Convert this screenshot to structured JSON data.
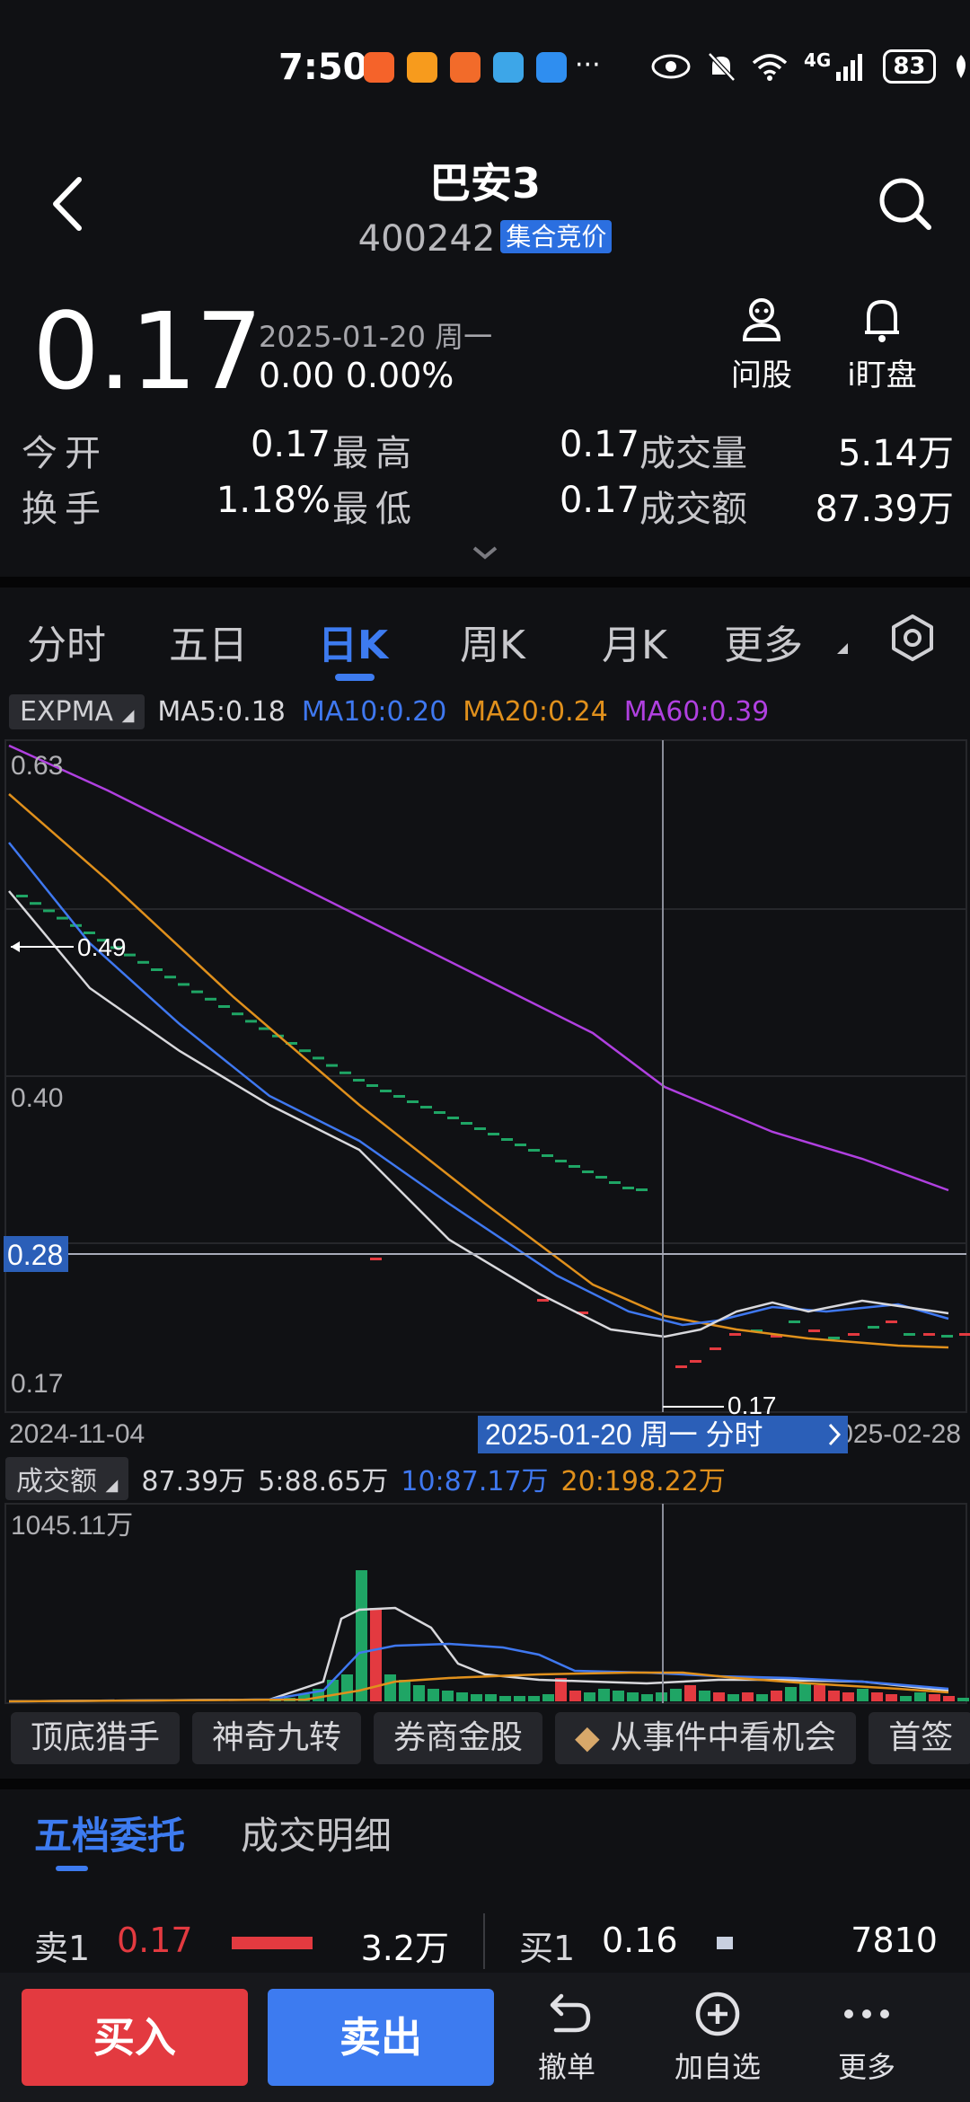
{
  "status_bar": {
    "time": "7:50",
    "dots": "···",
    "network": "4G",
    "battery": "83"
  },
  "header": {
    "title": "巴安3",
    "code": "400242",
    "badge": "集合竞价"
  },
  "quote": {
    "price": "0.17",
    "date": "2025-01-20 周一",
    "change": "0.00 0.00%",
    "tools": [
      {
        "label": "问股",
        "icon": "robot-icon"
      },
      {
        "label": "i盯盘",
        "icon": "bell-icon"
      }
    ],
    "stats": [
      {
        "l1": "今开",
        "v1": "0.17",
        "l2": "最高",
        "v2": "0.17",
        "l3": "成交量",
        "v3": "5.14万"
      },
      {
        "l1": "换手",
        "v1": "1.18%",
        "l2": "最低",
        "v2": "0.17",
        "l3": "成交额",
        "v3": "87.39万"
      }
    ]
  },
  "tabs": [
    "分时",
    "五日",
    "日K",
    "周K",
    "月K",
    "更多"
  ],
  "active_tab": "日K",
  "indicator": {
    "name": "EXPMA",
    "ma5": "MA5:0.18",
    "ma10": "MA10:0.20",
    "ma20": "MA20:0.24",
    "ma60": "MA60:0.39"
  },
  "price_chart": {
    "y_labels": [
      "0.63",
      "0.40",
      "0.28",
      "0.17"
    ],
    "marker_high": "0.49",
    "marker_low": "0.17",
    "date_start": "2024-11-04",
    "date_cursor": "2025-01-20 周一 分时",
    "date_end": "2025-02-28"
  },
  "volume_legend": {
    "name": "成交额",
    "value": "87.39万",
    "ma5": "5:88.65万",
    "ma10": "10:87.17万",
    "ma20": "20:198.22万",
    "max_label": "1045.11万"
  },
  "chips": [
    "顶底猎手",
    "神奇九转",
    "券商金股",
    "从事件中看机会",
    "首签"
  ],
  "orderbook": {
    "tabs": [
      "五档委托",
      "成交明细"
    ],
    "sell1": {
      "label": "卖1",
      "price": "0.17",
      "qty": "3.2万"
    },
    "buy1": {
      "label": "买1",
      "price": "0.16",
      "qty": "7810"
    }
  },
  "bottom": {
    "buy": "买入",
    "sell": "卖出",
    "actions": [
      {
        "label": "撤单",
        "icon": "undo-icon"
      },
      {
        "label": "加自选",
        "icon": "add-favorite-icon"
      },
      {
        "label": "更多",
        "icon": "more-icon"
      }
    ]
  },
  "colors": {
    "up": "#e33a40",
    "down": "#1fa565",
    "accent": "#3d7bf0",
    "ma5": "#d8d8dc",
    "ma10": "#3f78f0",
    "ma20": "#e0901c",
    "ma60": "#b040e0"
  },
  "chart_data": {
    "type": "line",
    "categories": [
      "2024-11-04",
      "2025-01-20",
      "2025-02-28"
    ],
    "series": [
      {
        "name": "MA5",
        "values": [
          0.54,
          0.18,
          0.18
        ]
      },
      {
        "name": "MA10",
        "values": [
          0.56,
          0.2,
          0.18
        ]
      },
      {
        "name": "MA20",
        "values": [
          0.6,
          0.24,
          0.19
        ]
      },
      {
        "name": "MA60",
        "values": [
          0.63,
          0.39,
          0.32
        ]
      }
    ],
    "ylim": [
      0.16,
      0.64
    ]
  }
}
